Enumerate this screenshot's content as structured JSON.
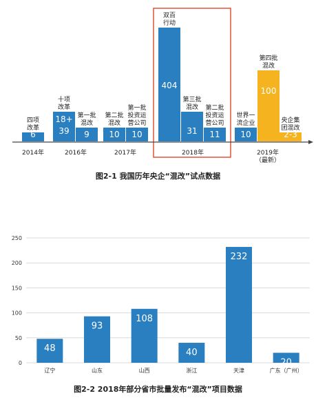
{
  "colors": {
    "blue": "#2a7fc1",
    "orange": "#f5b41f",
    "highlight": "#e0472a",
    "grid": "#d9d9d9",
    "axis": "#444444",
    "caption": "#222222"
  },
  "chart_data": [
    {
      "type": "bar",
      "title": "图2-1 我国历年央企“混改”试点数据",
      "bars": [
        {
          "label": "四项\n改革",
          "value": 6,
          "value_label": "6",
          "group": "2014年",
          "color": "blue"
        },
        {
          "label": "十项\n改革",
          "value": 39,
          "value_label": "39",
          "extra_label": "18+",
          "group": "2016年",
          "color": "blue"
        },
        {
          "label": "第一批\n混改",
          "value": 9,
          "value_label": "9",
          "group": "2016年",
          "color": "blue"
        },
        {
          "label": "第二批\n混改",
          "value": 10,
          "value_label": "10",
          "group": "2017年",
          "color": "blue"
        },
        {
          "label": "第一批\n投资运\n营公司",
          "value": 10,
          "value_label": "10",
          "group": "2017年",
          "color": "blue"
        },
        {
          "label": "双百\n行动",
          "value": 404,
          "value_label": "404",
          "group": "2018年",
          "color": "blue"
        },
        {
          "label": "第三批\n混改",
          "value": 31,
          "value_label": "31",
          "group": "2018年",
          "color": "blue"
        },
        {
          "label": "第二批\n投资运\n营公司",
          "value": 11,
          "value_label": "11",
          "group": "2018年",
          "color": "blue"
        },
        {
          "label": "世界一\n流企业",
          "value": 10,
          "value_label": "10",
          "group": "2019年\n（最新）",
          "color": "blue"
        },
        {
          "label": "第四批\n混改",
          "value": 100,
          "value_label": "100",
          "group": "2019年\n（最新）",
          "color": "orange"
        },
        {
          "label": "央企集\n团混改",
          "value": 2.5,
          "value_label": "2-3",
          "group": "2019年\n（最新）",
          "color": "orange"
        }
      ],
      "year_labels": [
        "2014年",
        "2016年",
        "2017年",
        "2018年",
        "2019年\n（最新）"
      ],
      "highlight_group": "2018年"
    },
    {
      "type": "bar",
      "title": "图2-2 2018年部分省市批量发布“混改”项目数据",
      "categories": [
        "辽宁",
        "山东",
        "山西",
        "浙江",
        "天津",
        "广东（广州）"
      ],
      "values": [
        48,
        93,
        108,
        40,
        232,
        20
      ],
      "ylim": [
        0,
        250
      ],
      "yticks": [
        0,
        50,
        100,
        150,
        200,
        250
      ],
      "grid": true
    }
  ]
}
